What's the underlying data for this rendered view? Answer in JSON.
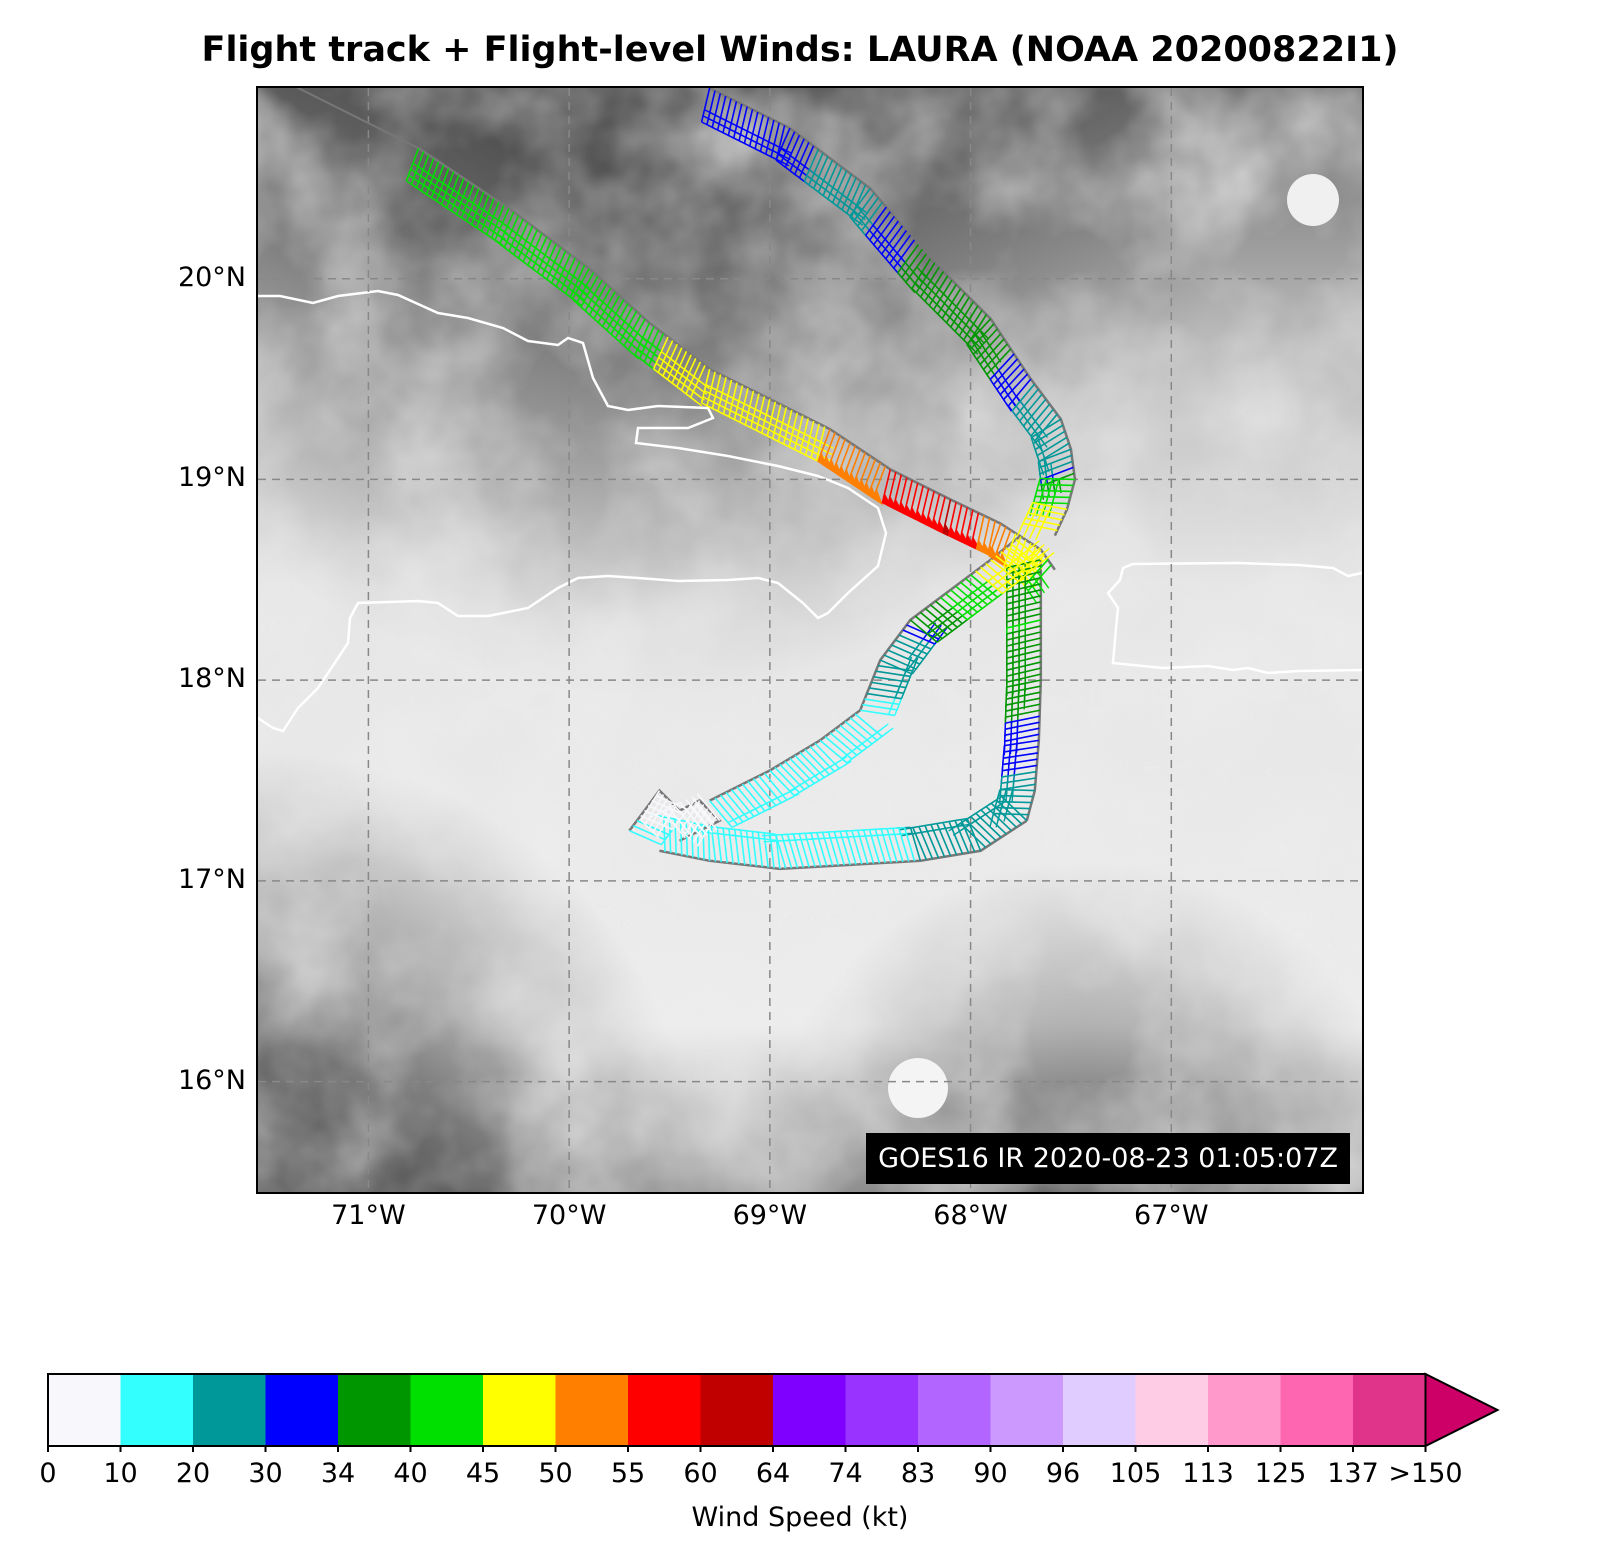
{
  "title": "Flight track + Flight-level Winds: LAURA (NOAA 20200822I1)",
  "timestamp": "GOES16 IR 2020-08-23 01:05:07Z",
  "lat_labels": [
    "20°N",
    "19°N",
    "18°N",
    "17°N",
    "16°N"
  ],
  "lon_labels": [
    "71°W",
    "70°W",
    "69°W",
    "68°W",
    "67°W"
  ],
  "colorbar": {
    "title": "Wind Speed (kt)",
    "tick_labels": [
      "0",
      "10",
      "20",
      "30",
      "34",
      "40",
      "45",
      "50",
      "55",
      "60",
      "64",
      "74",
      "83",
      "90",
      "96",
      "105",
      "113",
      "125",
      "137",
      ">150"
    ],
    "colors": [
      "#f8f8fc",
      "#33ffff",
      "#009898",
      "#0000ff",
      "#009600",
      "#00e000",
      "#ffff00",
      "#ff7f00",
      "#ff0000",
      "#c00000",
      "#8000ff",
      "#9933ff",
      "#b266ff",
      "#cc99ff",
      "#e0ccff",
      "#ffcce5",
      "#ff99cc",
      "#ff66b2",
      "#e0338a",
      "#cc0066"
    ],
    "extend_color": "#cc0066"
  },
  "map": {
    "lon_range": [
      -71.55,
      -66.05
    ],
    "lat_range": [
      15.45,
      20.95
    ],
    "gridlines": true
  },
  "legs": [
    {
      "name": "outbound-leg",
      "color_key": "green-yellow",
      "points": [
        [
          -70.75,
          20.65
        ],
        [
          -70.3,
          20.35
        ],
        [
          -69.9,
          20.05
        ],
        [
          -69.6,
          19.78
        ],
        [
          -69.3,
          19.55
        ],
        [
          -69.0,
          19.4
        ],
        [
          -68.7,
          19.25
        ],
        [
          -68.4,
          19.05
        ],
        [
          -68.1,
          18.9
        ],
        [
          -67.85,
          18.78
        ],
        [
          -67.65,
          18.65
        ],
        [
          -67.58,
          18.55
        ]
      ],
      "speeds_kt": [
        42,
        40,
        41,
        44,
        48,
        46,
        50,
        55,
        60,
        52,
        46,
        42
      ]
    },
    {
      "name": "northeast-leg",
      "color_key": "blue-green",
      "points": [
        [
          -69.3,
          20.95
        ],
        [
          -68.9,
          20.75
        ],
        [
          -68.5,
          20.45
        ],
        [
          -68.2,
          20.1
        ],
        [
          -67.9,
          19.8
        ],
        [
          -67.7,
          19.5
        ],
        [
          -67.55,
          19.3
        ],
        [
          -67.5,
          19.15
        ],
        [
          -67.48,
          19.0
        ],
        [
          -67.52,
          18.85
        ],
        [
          -67.58,
          18.72
        ]
      ],
      "speeds_kt": [
        32,
        31,
        28,
        36,
        38,
        30,
        24,
        22,
        40,
        46,
        48
      ]
    },
    {
      "name": "southward-leg",
      "color_key": "green-blue",
      "points": [
        [
          -67.65,
          18.6
        ],
        [
          -67.65,
          18.3
        ],
        [
          -67.65,
          18.0
        ],
        [
          -67.66,
          17.7
        ],
        [
          -67.68,
          17.45
        ],
        [
          -67.72,
          17.3
        ]
      ],
      "speeds_kt": [
        38,
        40,
        36,
        32,
        28,
        24
      ]
    },
    {
      "name": "southern-leg",
      "color_key": "teal-cyan",
      "points": [
        [
          -67.72,
          17.3
        ],
        [
          -67.95,
          17.15
        ],
        [
          -68.25,
          17.1
        ],
        [
          -68.6,
          17.08
        ],
        [
          -68.95,
          17.06
        ],
        [
          -69.3,
          17.1
        ],
        [
          -69.55,
          17.15
        ]
      ],
      "speeds_kt": [
        22,
        21,
        20,
        19,
        18,
        15,
        12
      ]
    },
    {
      "name": "center-loop",
      "color_key": "white-cyan",
      "points": [
        [
          -69.7,
          17.25
        ],
        [
          -69.55,
          17.45
        ],
        [
          -69.45,
          17.35
        ],
        [
          -69.35,
          17.4
        ],
        [
          -69.25,
          17.3
        ],
        [
          -69.45,
          17.2
        ]
      ],
      "speeds_kt": [
        12,
        6,
        4,
        5,
        3,
        8
      ]
    },
    {
      "name": "inbound-leg",
      "color_key": "cyan-green",
      "points": [
        [
          -69.3,
          17.4
        ],
        [
          -69.0,
          17.55
        ],
        [
          -68.75,
          17.7
        ],
        [
          -68.55,
          17.85
        ],
        [
          -68.45,
          18.1
        ],
        [
          -68.3,
          18.3
        ],
        [
          -68.1,
          18.45
        ],
        [
          -67.9,
          18.6
        ],
        [
          -67.75,
          18.72
        ]
      ],
      "speeds_kt": [
        15,
        17,
        18,
        19,
        22,
        34,
        42,
        47,
        48
      ]
    }
  ]
}
